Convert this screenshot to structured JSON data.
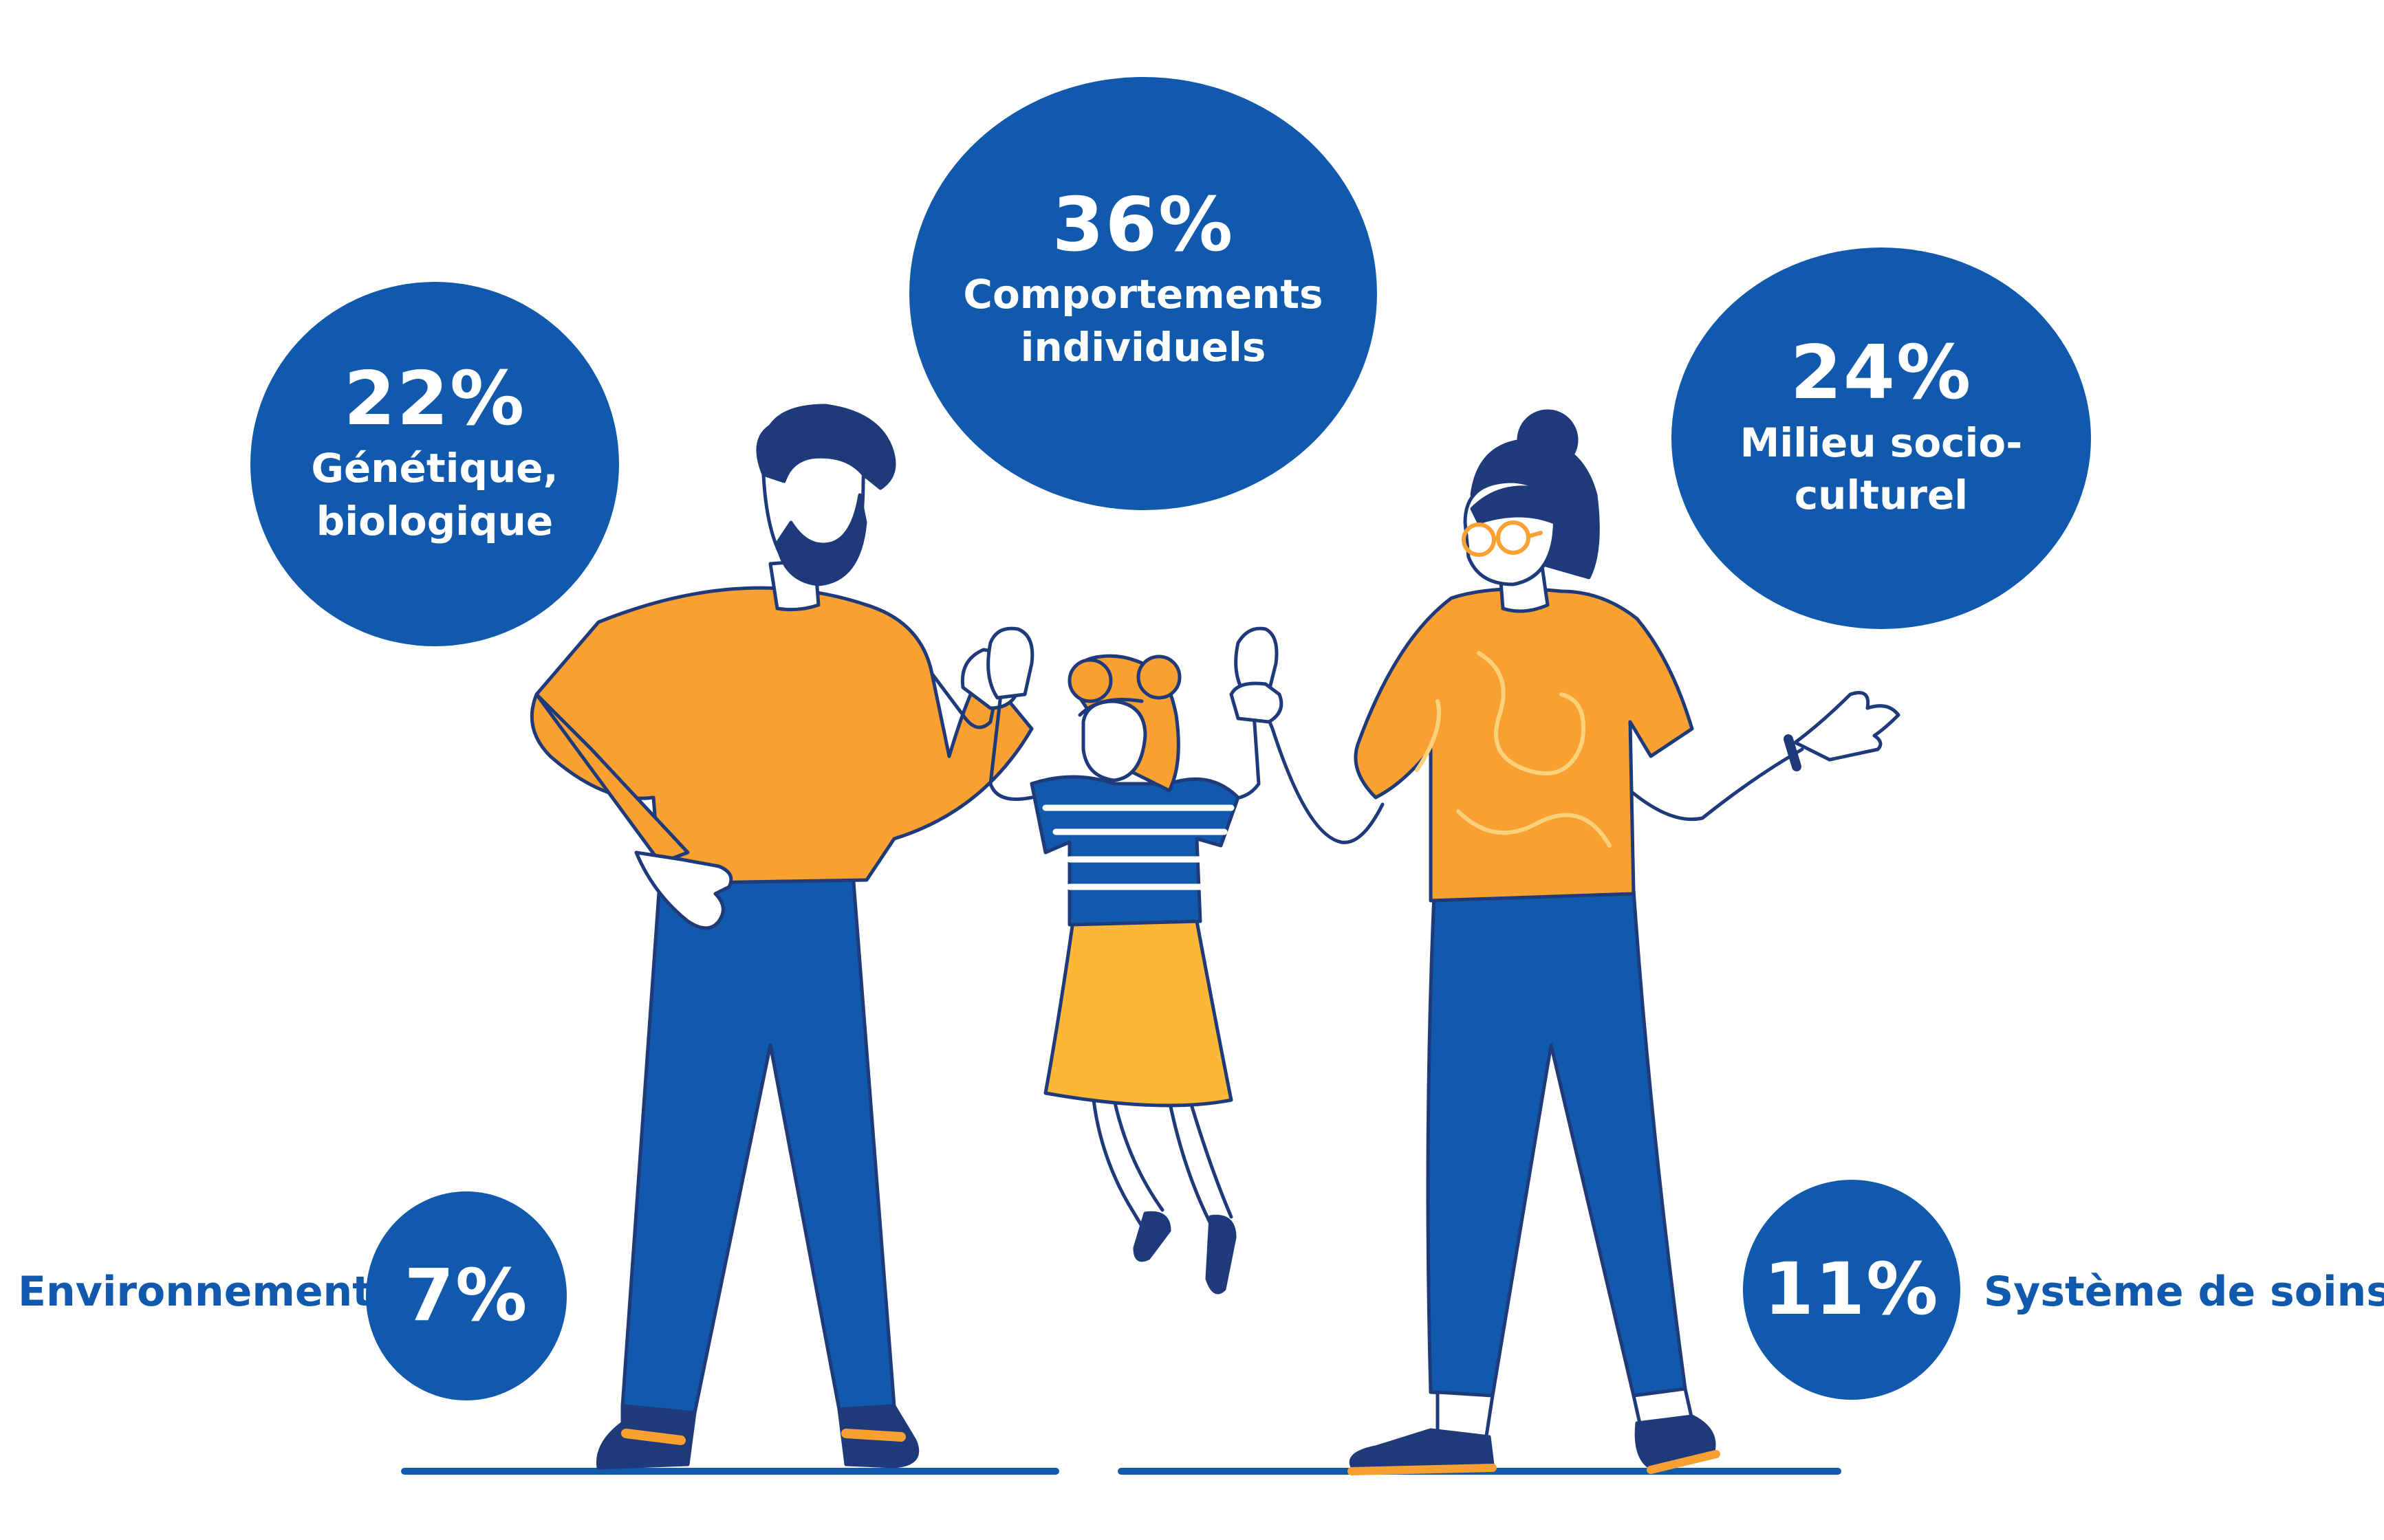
{
  "bubbles": {
    "comportements": {
      "percent": "36%",
      "line1": "Comportements",
      "line2": "individuels"
    },
    "genetique": {
      "percent": "22%",
      "line1": "Génétique,",
      "line2": "biologique"
    },
    "milieu": {
      "percent": "24%",
      "line1": "Milieu socio-",
      "line2": "culturel"
    },
    "environnement": {
      "percent": "7%",
      "label": "Environnement"
    },
    "soins": {
      "percent": "11%",
      "label": "Système de soins"
    }
  },
  "colors": {
    "bubble_blue": "#1059ad",
    "pants_blue": "#1059ad",
    "shirt_orange": "#f9a032",
    "skirt_yellow": "#fbb738",
    "outline_navy": "#1f3a7a",
    "skin": "#ffffff"
  },
  "figures": [
    "father",
    "daughter",
    "mother"
  ]
}
